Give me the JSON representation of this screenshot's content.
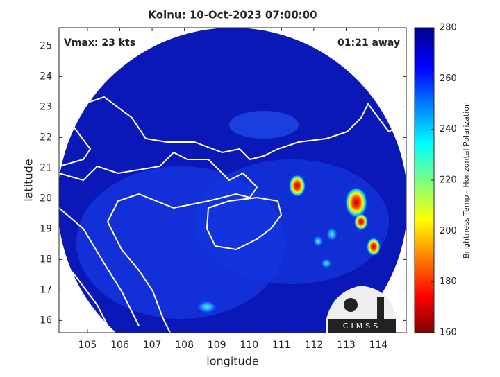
{
  "chart_data": {
    "type": "map",
    "title": "Koinu: 10-Oct-2023 07:00:00",
    "annotations": [
      "Vmax: 23 kts",
      "01:21 away"
    ],
    "x_label": "longitude",
    "y_label": "latitude",
    "xlim": [
      104.12,
      114.86
    ],
    "xticks": [
      105,
      106,
      107,
      108,
      109,
      110,
      111,
      112,
      113,
      114
    ],
    "ylim": [
      15.6,
      25.6
    ],
    "yticks": [
      16,
      17,
      18,
      19,
      20,
      21,
      22,
      23,
      24,
      25
    ],
    "colorbar": {
      "label": "Brightness Temp - Horizontal Polarization",
      "lim": [
        160,
        280
      ],
      "ticks": [
        160,
        180,
        200,
        220,
        240,
        260,
        280
      ]
    },
    "logo": "CIMSS"
  }
}
